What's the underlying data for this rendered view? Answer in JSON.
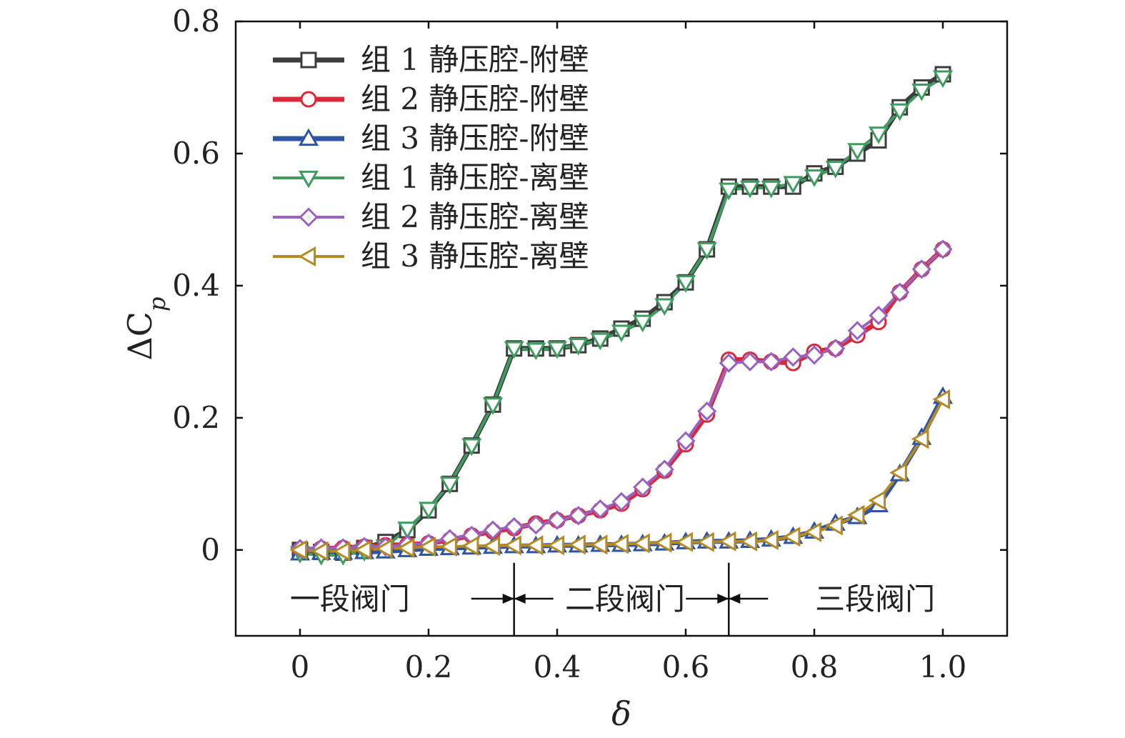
{
  "chart_data": {
    "type": "line",
    "title": "",
    "xlabel": "δ",
    "ylabel": "ΔC",
    "ylabel_subscript": "p",
    "xlim": [
      -0.1,
      1.1
    ],
    "ylim": [
      -0.13,
      0.8
    ],
    "xticks": [
      0,
      0.2,
      0.4,
      0.6,
      0.8,
      1.0
    ],
    "xtick_labels": [
      "0",
      "0.2",
      "0.4",
      "0.6",
      "0.8",
      "1.0"
    ],
    "yticks": [
      0,
      0.2,
      0.4,
      0.6,
      0.8
    ],
    "ytick_labels": [
      "0",
      "0.2",
      "0.4",
      "0.6",
      "0.8"
    ],
    "grid": false,
    "legend_position": "top-left",
    "x": [
      0,
      0.033,
      0.067,
      0.1,
      0.133,
      0.167,
      0.2,
      0.233,
      0.267,
      0.3,
      0.333,
      0.367,
      0.4,
      0.433,
      0.467,
      0.5,
      0.533,
      0.567,
      0.6,
      0.633,
      0.667,
      0.7,
      0.733,
      0.767,
      0.8,
      0.833,
      0.867,
      0.9,
      0.933,
      0.967,
      1.0
    ],
    "series": [
      {
        "name": "组 1 静压腔-附壁",
        "color": "#3d3d3d",
        "marker": "square",
        "width": 7,
        "values": [
          0,
          -0.003,
          -0.004,
          0.003,
          0.012,
          0.03,
          0.06,
          0.1,
          0.158,
          0.22,
          0.305,
          0.305,
          0.305,
          0.31,
          0.32,
          0.335,
          0.35,
          0.375,
          0.405,
          0.455,
          0.55,
          0.55,
          0.55,
          0.55,
          0.57,
          0.58,
          0.6,
          0.62,
          0.67,
          0.7,
          0.72
        ]
      },
      {
        "name": "组 2 静压腔-附壁",
        "color": "#d8283a",
        "marker": "circle",
        "width": 7,
        "values": [
          0,
          0.002,
          0.003,
          0.005,
          0.007,
          0.008,
          0.01,
          0.015,
          0.022,
          0.028,
          0.033,
          0.04,
          0.045,
          0.052,
          0.06,
          0.07,
          0.092,
          0.12,
          0.16,
          0.205,
          0.288,
          0.288,
          0.285,
          0.283,
          0.3,
          0.305,
          0.325,
          0.345,
          0.39,
          0.425,
          0.455
        ]
      },
      {
        "name": "组 3 静压腔-附壁",
        "color": "#2e55a5",
        "marker": "triangle-up",
        "width": 7,
        "values": [
          -0.005,
          -0.004,
          -0.004,
          -0.003,
          -0.002,
          0,
          0.002,
          0.003,
          0.004,
          0.005,
          0.006,
          0.006,
          0.007,
          0.007,
          0.008,
          0.008,
          0.009,
          0.01,
          0.012,
          0.013,
          0.013,
          0.014,
          0.016,
          0.02,
          0.028,
          0.04,
          0.05,
          0.068,
          0.115,
          0.17,
          0.232
        ]
      },
      {
        "name": "组 1 静压腔-离壁",
        "color": "#3f9c5f",
        "marker": "triangle-down",
        "width": 4,
        "values": [
          -0.005,
          -0.008,
          -0.008,
          -0.002,
          0.005,
          0.032,
          0.062,
          0.1,
          0.158,
          0.22,
          0.305,
          0.303,
          0.305,
          0.31,
          0.318,
          0.33,
          0.345,
          0.37,
          0.405,
          0.455,
          0.545,
          0.548,
          0.548,
          0.555,
          0.565,
          0.578,
          0.605,
          0.63,
          0.665,
          0.695,
          0.715
        ]
      },
      {
        "name": "组 2 静压腔-离壁",
        "color": "#9a62bf",
        "marker": "diamond",
        "width": 4,
        "values": [
          0.002,
          0.003,
          0.003,
          0.005,
          0.005,
          0.008,
          0.01,
          0.017,
          0.022,
          0.03,
          0.035,
          0.038,
          0.045,
          0.052,
          0.062,
          0.073,
          0.095,
          0.122,
          0.165,
          0.21,
          0.283,
          0.285,
          0.285,
          0.292,
          0.295,
          0.305,
          0.332,
          0.355,
          0.39,
          0.425,
          0.455
        ]
      },
      {
        "name": "组 3 静压腔-离壁",
        "color": "#b58a23",
        "marker": "triangle-left",
        "width": 4,
        "values": [
          0,
          -0.002,
          -0.002,
          0,
          0.002,
          0.003,
          0.005,
          0.005,
          0.006,
          0.006,
          0.007,
          0.007,
          0.007,
          0.008,
          0.008,
          0.009,
          0.01,
          0.011,
          0.012,
          0.012,
          0.013,
          0.013,
          0.015,
          0.02,
          0.027,
          0.037,
          0.053,
          0.075,
          0.117,
          0.168,
          0.228
        ]
      }
    ],
    "region_labels": [
      "一段阀门",
      "二段阀门",
      "三段阀门"
    ],
    "region_dividers": [
      0.333,
      0.667
    ]
  }
}
